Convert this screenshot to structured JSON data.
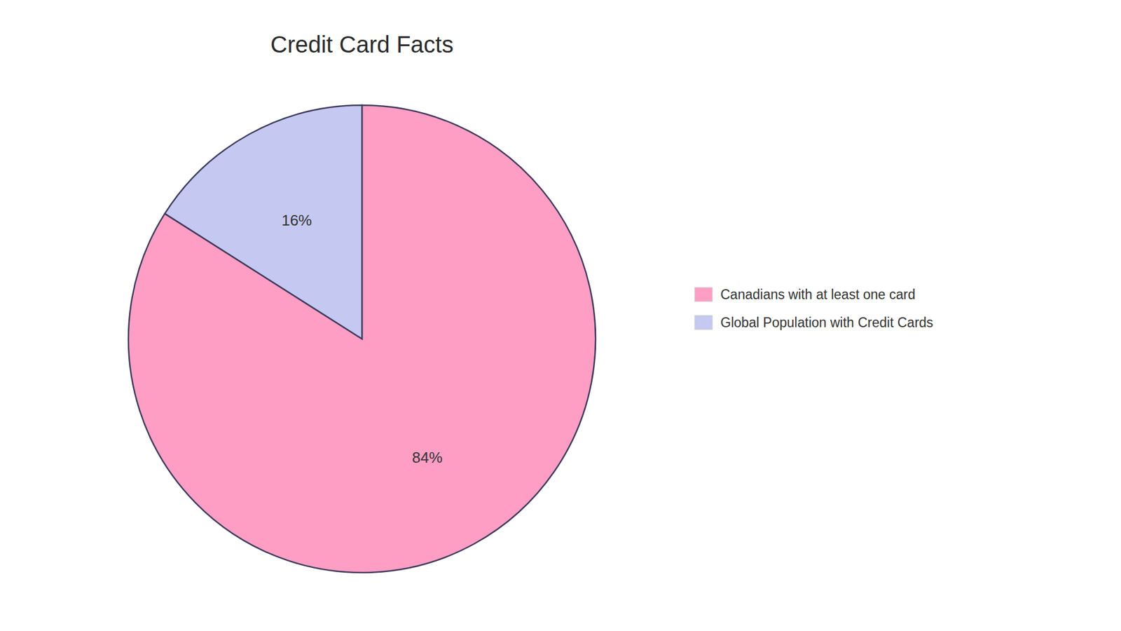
{
  "chart_data": {
    "type": "pie",
    "title": "Credit Card Facts",
    "categories": [
      "Canadians with at least one card",
      "Global Population with Credit Cards"
    ],
    "values": [
      84,
      16
    ],
    "value_labels": [
      "84%",
      "16%"
    ],
    "colors": [
      "#FF9EC4",
      "#C5C8F0"
    ],
    "data_labels": true,
    "legend": "right"
  }
}
